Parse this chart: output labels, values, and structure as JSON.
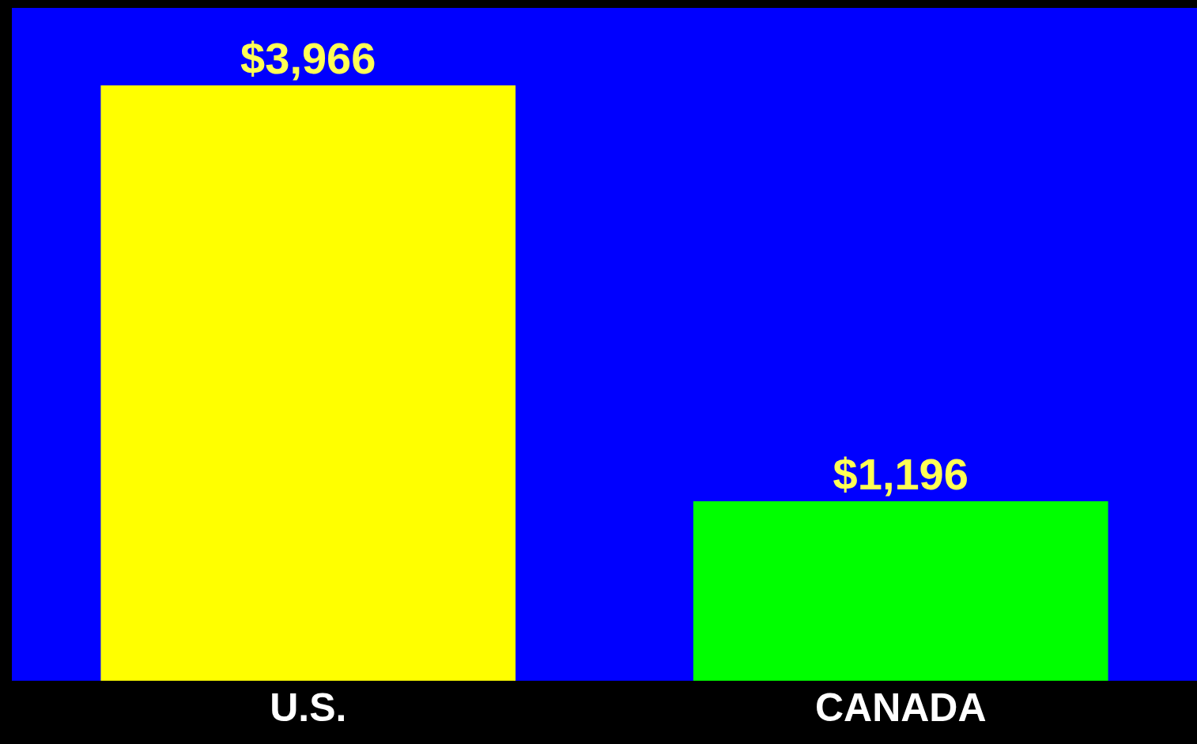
{
  "chart_data": {
    "type": "bar",
    "categories": [
      "U.S.",
      "CANADA"
    ],
    "values": [
      3966,
      1196
    ],
    "colors": [
      "#ffff00",
      "#00ff00"
    ],
    "value_labels": [
      "$3,966",
      "$1,196"
    ],
    "grid": false
  }
}
